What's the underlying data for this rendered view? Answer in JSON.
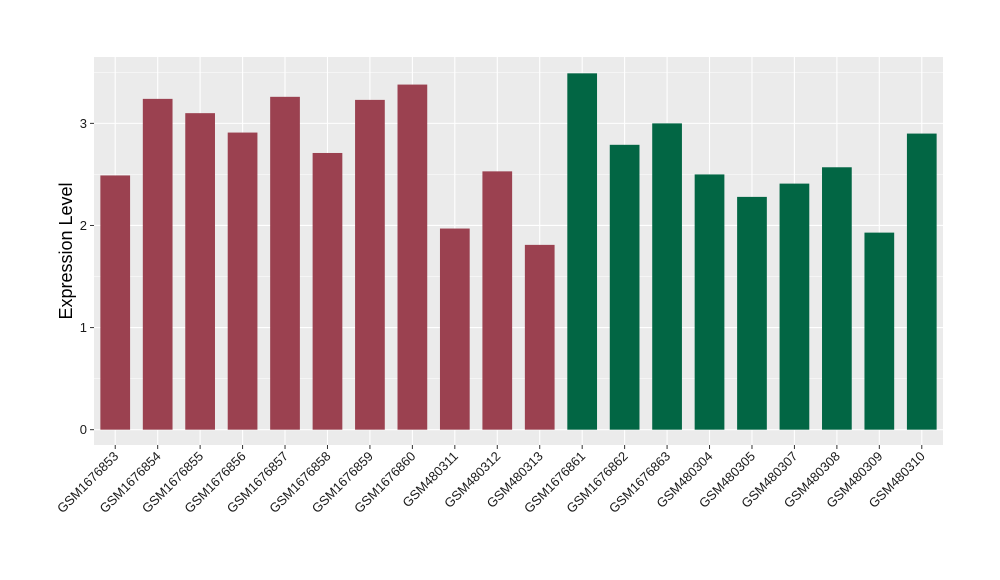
{
  "chart_data": {
    "type": "bar",
    "title": "",
    "xlabel": "",
    "ylabel": "Expression Level",
    "ylim": [
      -0.15,
      3.65
    ],
    "yticks": [
      0,
      1,
      2,
      3
    ],
    "ytick_labels": [
      "0",
      "1",
      "2",
      "3"
    ],
    "grid": true,
    "legend": "none",
    "categories": [
      "GSM1676853",
      "GSM1676854",
      "GSM1676855",
      "GSM1676856",
      "GSM1676857",
      "GSM1676858",
      "GSM1676859",
      "GSM1676860",
      "GSM480311",
      "GSM480312",
      "GSM480313",
      "GSM1676861",
      "GSM1676862",
      "GSM1676863",
      "GSM480304",
      "GSM480305",
      "GSM480307",
      "GSM480308",
      "GSM480309",
      "GSM480310"
    ],
    "values": [
      2.49,
      3.24,
      3.1,
      2.91,
      3.26,
      2.71,
      3.23,
      3.38,
      1.97,
      2.53,
      1.81,
      3.49,
      2.79,
      3.0,
      2.5,
      2.28,
      2.41,
      2.57,
      1.93,
      2.9
    ],
    "bar_colors": [
      "#9B4150",
      "#9B4150",
      "#9B4150",
      "#9B4150",
      "#9B4150",
      "#9B4150",
      "#9B4150",
      "#9B4150",
      "#9B4150",
      "#9B4150",
      "#9B4150",
      "#026644",
      "#026644",
      "#026644",
      "#026644",
      "#026644",
      "#026644",
      "#026644",
      "#026644",
      "#026644"
    ],
    "panel_background": "#EBEBEB",
    "grid_color": "#FFFFFF"
  }
}
